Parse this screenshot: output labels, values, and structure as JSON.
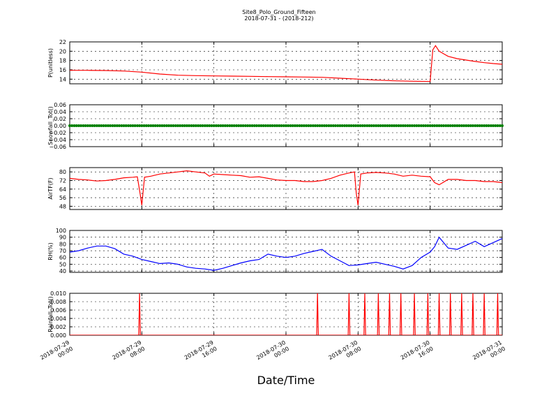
{
  "figure": {
    "title_line1": "Site8_Polo_Ground_Fifteen",
    "title_line2": "2018-07-31 - (2018-212)",
    "xlabel": "Date/Time"
  },
  "chart_data": [
    {
      "type": "line",
      "ylabel": "P(unitless)",
      "ylim": [
        13,
        22
      ],
      "yticks": [
        "14",
        "16",
        "18",
        "20",
        "22"
      ],
      "color": "#ff0000",
      "grid": true,
      "x_hours": [
        0,
        2,
        4,
        6,
        8,
        10,
        12,
        14,
        16,
        18,
        20,
        22,
        24,
        26,
        28,
        30,
        32,
        34,
        36,
        38,
        40,
        40.3,
        40.6,
        41,
        42,
        43,
        44,
        45,
        46,
        47,
        48
      ],
      "values": [
        15.9,
        15.9,
        15.85,
        15.75,
        15.5,
        15.1,
        14.85,
        14.75,
        14.7,
        14.65,
        14.6,
        14.55,
        14.5,
        14.45,
        14.4,
        14.2,
        14.0,
        13.8,
        13.65,
        13.55,
        13.5,
        20.3,
        21.2,
        20.0,
        18.9,
        18.4,
        18.1,
        17.8,
        17.55,
        17.35,
        17.2
      ]
    },
    {
      "type": "scatter",
      "ylabel": "Snowfall_Tot()",
      "ylim": [
        -0.06,
        0.06
      ],
      "yticks": [
        "−0.06",
        "−0.04",
        "−0.02",
        "0.00",
        "0.02",
        "0.04",
        "0.06"
      ],
      "color": "#008000",
      "grid": true,
      "constant_value": 0.0,
      "x_range_hours": [
        0,
        48
      ],
      "interval_minutes": 15
    },
    {
      "type": "line",
      "ylabel": "AirTF(F)",
      "ylim": [
        45,
        84
      ],
      "yticks": [
        "48",
        "56",
        "64",
        "72",
        "80"
      ],
      "color": "#ff0000",
      "grid": true,
      "x_hours": [
        0,
        1,
        2,
        3,
        4,
        5,
        6,
        7,
        7.5,
        7.8,
        8,
        8.3,
        9,
        10,
        11,
        12,
        13,
        14,
        15,
        15.5,
        16,
        17,
        18,
        19,
        20,
        21,
        22,
        23,
        24,
        25,
        26,
        27,
        28,
        29,
        30,
        31,
        31.6,
        31.8,
        32,
        32.3,
        33,
        34,
        35,
        36,
        37,
        38,
        39,
        40,
        40.5,
        41,
        42,
        43,
        44,
        45,
        46,
        47,
        48
      ],
      "values": [
        74,
        73,
        72.5,
        71.5,
        72,
        73,
        74.5,
        75,
        75.5,
        60,
        49,
        75,
        76,
        78,
        79,
        80,
        81,
        80,
        79,
        76,
        78,
        77.5,
        77,
        76.5,
        75,
        75.5,
        74,
        72.5,
        72,
        72,
        71,
        71,
        72,
        74,
        77,
        79,
        80,
        60,
        49,
        78,
        79,
        79.5,
        79,
        78,
        76,
        77,
        76,
        75.5,
        70,
        68,
        73,
        73,
        72,
        72,
        71,
        71,
        70
      ]
    },
    {
      "type": "line",
      "ylabel": "RH(%)",
      "ylim": [
        38,
        100
      ],
      "yticks": [
        "40",
        "50",
        "60",
        "70",
        "80",
        "90",
        "100"
      ],
      "color": "#0000ff",
      "grid": true,
      "x_hours": [
        0,
        1,
        2,
        3,
        4,
        5,
        6,
        7,
        8,
        9,
        10,
        11,
        12,
        13,
        14,
        15,
        16,
        17,
        18,
        19,
        20,
        21,
        22,
        23,
        24,
        25,
        26,
        27,
        28,
        29,
        30,
        31,
        32,
        33,
        34,
        35,
        36,
        37,
        38,
        39,
        40,
        40.5,
        41,
        42,
        43,
        44,
        45,
        46,
        47,
        48
      ],
      "values": [
        68,
        70,
        74,
        77,
        77,
        73,
        65,
        62,
        57,
        54,
        51,
        52,
        50,
        46,
        44,
        43,
        41,
        44,
        48,
        52,
        55,
        57,
        65,
        62,
        60,
        62,
        66,
        69,
        72,
        62,
        55,
        48,
        49,
        51,
        53,
        50,
        47,
        43,
        48,
        60,
        68,
        76,
        90,
        74,
        72,
        78,
        84,
        76,
        82,
        88
      ]
    },
    {
      "type": "line",
      "ylabel": "Rainfall_Tot()",
      "ylim": [
        0,
        0.01
      ],
      "yticks": [
        "0.000",
        "0.002",
        "0.004",
        "0.006",
        "0.008",
        "0.010"
      ],
      "xticks": [
        "2018-07-29\n00:00",
        "2018-07-29\n08:00",
        "2018-07-29\n16:00",
        "2018-07-30\n00:00",
        "2018-07-30\n08:00",
        "2018-07-30\n16:00",
        "2018-07-31\n00:00"
      ],
      "color": "#ff0000",
      "grid": true,
      "spike_hours": [
        7.75,
        27.5,
        31.0,
        32.75,
        34.25,
        35.5,
        36.75,
        38.25,
        39.75,
        41.0,
        42.25,
        43.5,
        44.75,
        46.0,
        47.5
      ],
      "spike_value": 0.01
    }
  ]
}
